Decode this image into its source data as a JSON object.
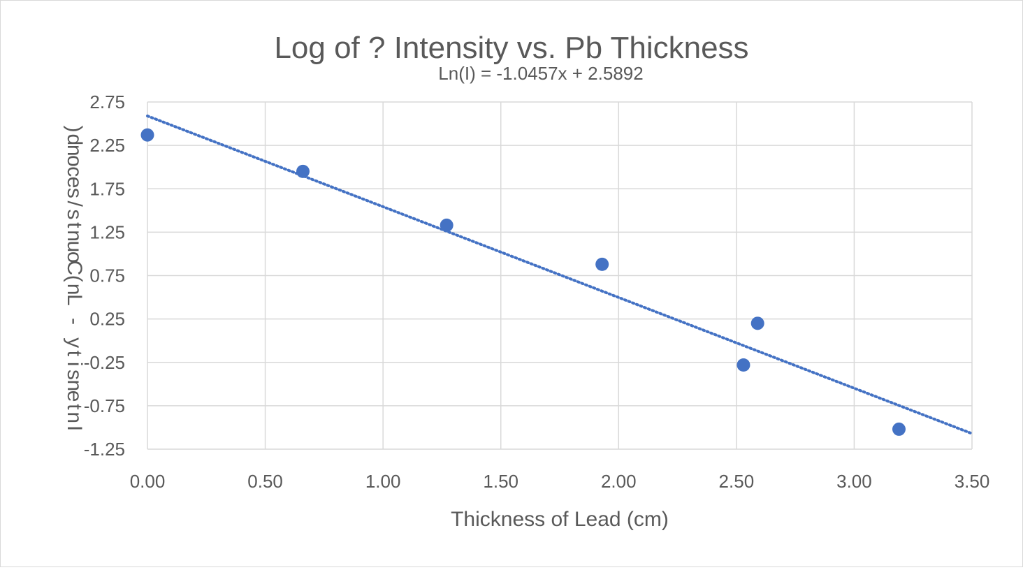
{
  "chart_data": {
    "type": "scatter",
    "title": "Log of ? Intensity  vs. Pb Thickness",
    "subtitle": "Ln(I) = -1.0457x + 2.5892",
    "xlabel": "Thickness of Lead (cm)",
    "ylabel": "Intensity - Ln(Counts/second)",
    "xlim": [
      0,
      3.5
    ],
    "ylim": [
      -1.25,
      2.75
    ],
    "x_ticks": [
      "0.00",
      "0.50",
      "1.00",
      "1.50",
      "2.00",
      "2.50",
      "3.00",
      "3.50"
    ],
    "y_ticks": [
      "2.75",
      "2.25",
      "1.75",
      "1.25",
      "0.75",
      "0.25",
      "-0.25",
      "-0.75",
      "-1.25"
    ],
    "grid": true,
    "legend": "none",
    "series": [
      {
        "color": "#4472C4",
        "marker": "circle",
        "x": [
          0.0,
          0.66,
          1.27,
          1.93,
          2.53,
          2.59,
          3.19
        ],
        "y": [
          2.37,
          1.95,
          1.33,
          0.88,
          -0.28,
          0.2,
          -1.02
        ]
      }
    ],
    "trendline": {
      "type": "linear",
      "style": "dotted",
      "color": "#4472C4",
      "slope": -1.0457,
      "intercept": 2.5892,
      "x_range": [
        0,
        3.5
      ]
    }
  }
}
